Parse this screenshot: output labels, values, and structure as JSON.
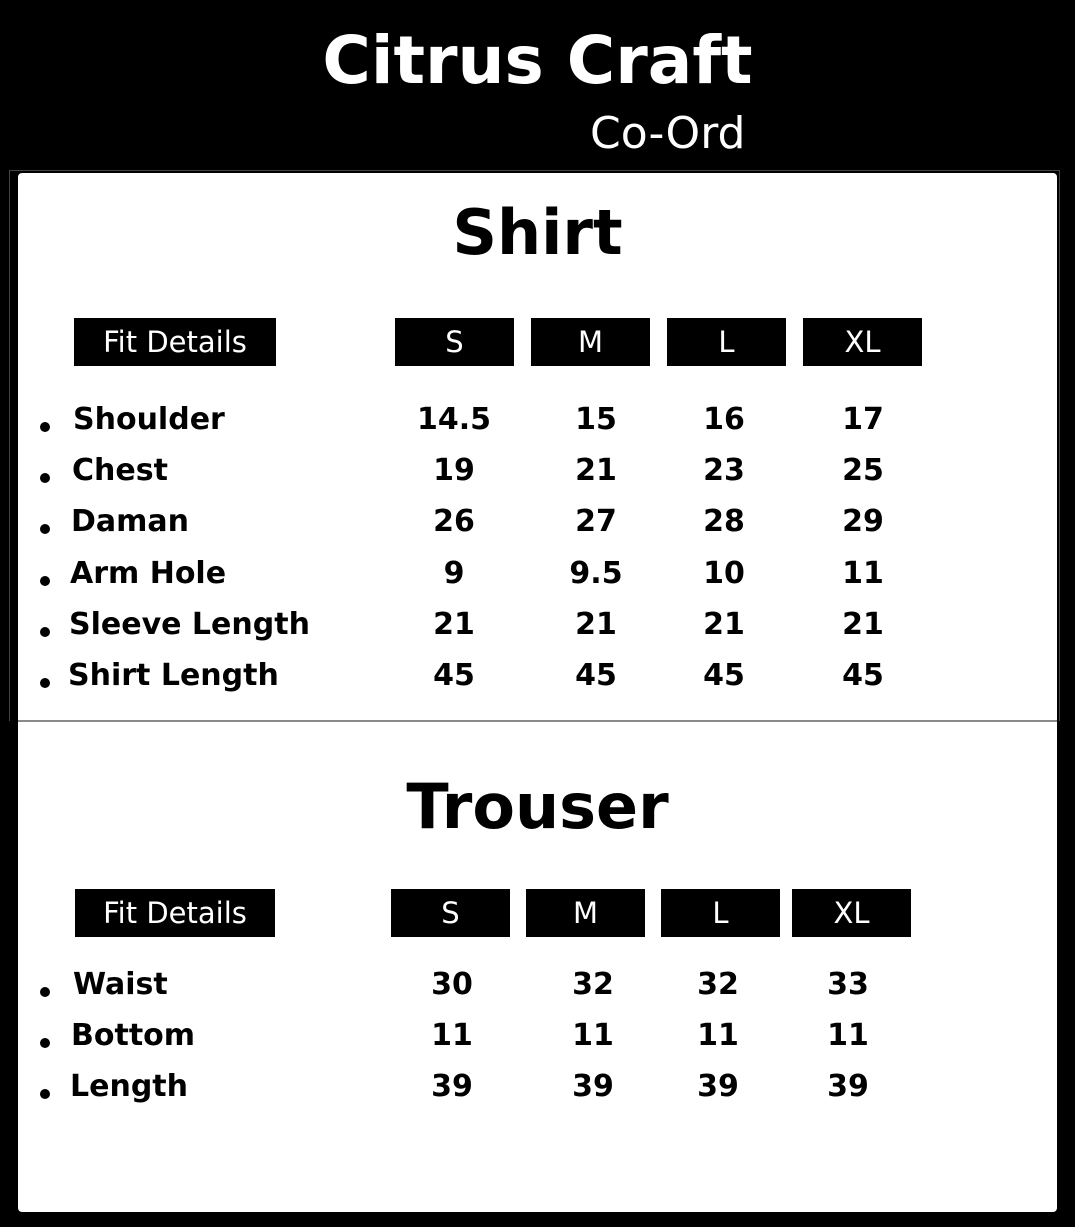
{
  "brand": {
    "title": "Citrus Craft",
    "subtitle": "Co-Ord"
  },
  "sections": [
    {
      "title": "Shirt",
      "header_label": "Fit Details",
      "sizes": [
        "S",
        "M",
        "L",
        "XL"
      ],
      "rows": [
        {
          "label": "Shoulder",
          "values": [
            "14.5",
            "15",
            "16",
            "17"
          ]
        },
        {
          "label": "Chest",
          "values": [
            "19",
            "21",
            "23",
            "25"
          ]
        },
        {
          "label": "Daman",
          "values": [
            "26",
            "27",
            "28",
            "29"
          ]
        },
        {
          "label": "Arm Hole",
          "values": [
            "9",
            "9.5",
            "10",
            "11"
          ]
        },
        {
          "label": "Sleeve Length",
          "values": [
            "21",
            "21",
            "21",
            "21"
          ]
        },
        {
          "label": "Shirt Length",
          "values": [
            "45",
            "45",
            "45",
            "45"
          ]
        }
      ]
    },
    {
      "title": "Trouser",
      "header_label": "Fit Details",
      "sizes": [
        "S",
        "M",
        "L",
        "XL"
      ],
      "rows": [
        {
          "label": "Waist",
          "values": [
            "30",
            "32",
            "32",
            "33"
          ]
        },
        {
          "label": "Bottom",
          "values": [
            "11",
            "11",
            "11",
            "11"
          ]
        },
        {
          "label": "Length",
          "values": [
            "39",
            "39",
            "39",
            "39"
          ]
        }
      ]
    }
  ]
}
